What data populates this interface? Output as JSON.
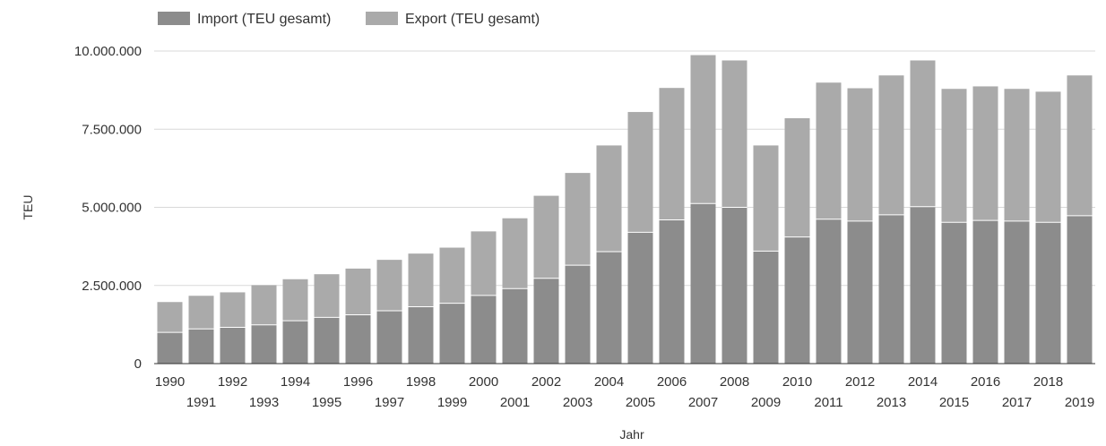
{
  "chart_data": {
    "type": "bar",
    "stacked": true,
    "xlabel": "Jahr",
    "ylabel": "TEU",
    "ylim": [
      0,
      10000000
    ],
    "yticks": [
      0,
      2500000,
      5000000,
      7500000,
      10000000
    ],
    "ytick_labels": [
      "0",
      "2.500.000",
      "5.000.000",
      "7.500.000",
      "10.000.000"
    ],
    "grid": true,
    "legend_position": "top-left",
    "categories": [
      "1990",
      "1991",
      "1992",
      "1993",
      "1994",
      "1995",
      "1996",
      "1997",
      "1998",
      "1999",
      "2000",
      "2001",
      "2002",
      "2003",
      "2004",
      "2005",
      "2006",
      "2007",
      "2008",
      "2009",
      "2010",
      "2011",
      "2012",
      "2013",
      "2014",
      "2015",
      "2016",
      "2017",
      "2018",
      "2019"
    ],
    "series": [
      {
        "name": "Import (TEU gesamt)",
        "color": "#8c8c8c",
        "values": [
          1000000,
          1110000,
          1160000,
          1240000,
          1370000,
          1480000,
          1560000,
          1690000,
          1820000,
          1930000,
          2180000,
          2400000,
          2730000,
          3150000,
          3580000,
          4200000,
          4600000,
          5120000,
          5000000,
          3600000,
          4050000,
          4620000,
          4560000,
          4760000,
          5020000,
          4520000,
          4580000,
          4560000,
          4520000,
          4730000
        ]
      },
      {
        "name": "Export (TEU gesamt)",
        "color": "#aaaaaa",
        "values": [
          970000,
          1060000,
          1120000,
          1270000,
          1330000,
          1380000,
          1480000,
          1630000,
          1700000,
          1780000,
          2050000,
          2250000,
          2640000,
          2950000,
          3400000,
          3850000,
          4220000,
          4750000,
          4700000,
          3380000,
          3800000,
          4370000,
          4250000,
          4460000,
          4680000,
          4270000,
          4290000,
          4230000,
          4180000,
          4490000
        ]
      }
    ]
  }
}
